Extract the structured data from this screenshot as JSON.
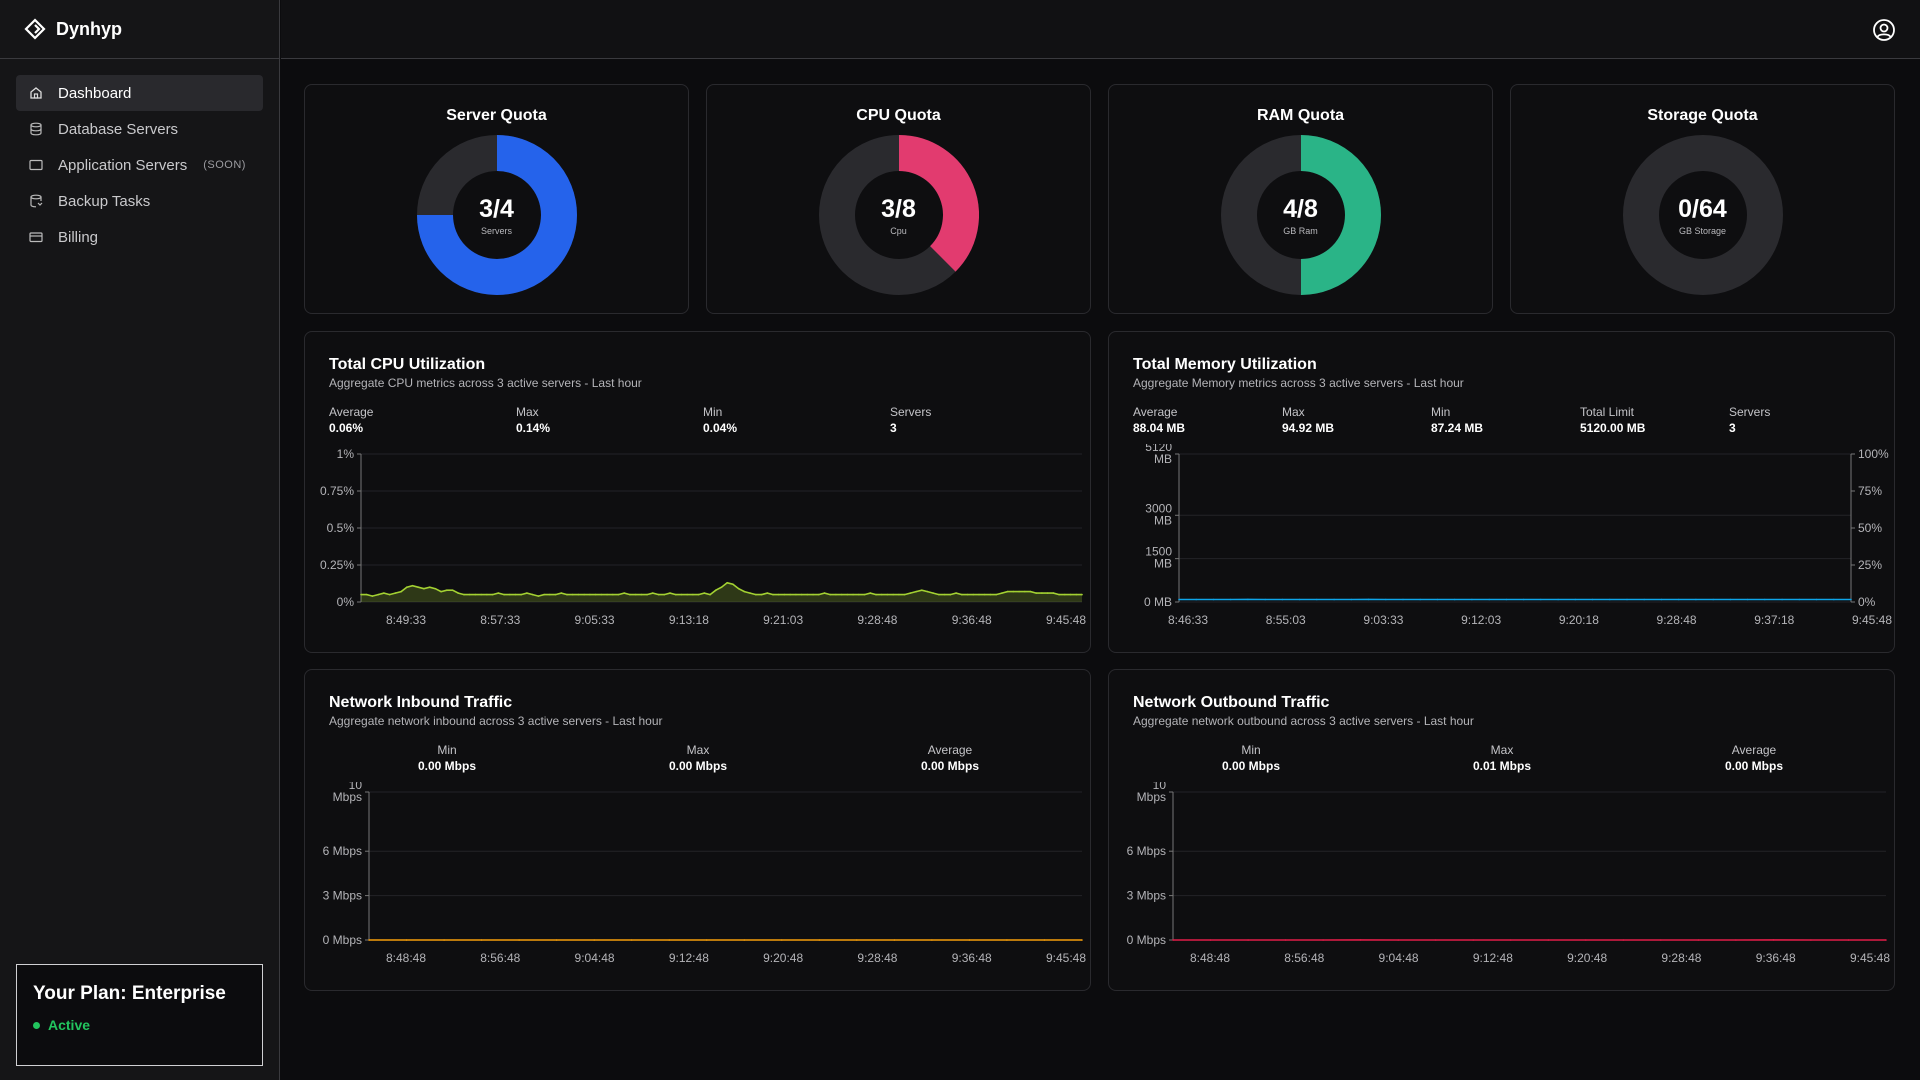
{
  "brand": {
    "name": "Dynhyp"
  },
  "sidebar": {
    "items": [
      {
        "label": "Dashboard"
      },
      {
        "label": "Database Servers"
      },
      {
        "label": "Application Servers",
        "badge": "(SOON)"
      },
      {
        "label": "Backup Tasks"
      },
      {
        "label": "Billing"
      }
    ]
  },
  "plan": {
    "title": "Your Plan: Enterprise",
    "status": "Active"
  },
  "quotas": [
    {
      "title": "Server Quota",
      "value": "3/4",
      "unit": "Servers",
      "used": 3,
      "total": 4,
      "color": "#2563eb"
    },
    {
      "title": "CPU Quota",
      "value": "3/8",
      "unit": "Cpu",
      "used": 3,
      "total": 8,
      "color": "#e23b6f"
    },
    {
      "title": "RAM Quota",
      "value": "4/8",
      "unit": "GB Ram",
      "used": 4,
      "total": 8,
      "color": "#2ab487"
    },
    {
      "title": "Storage Quota",
      "value": "0/64",
      "unit": "GB Storage",
      "used": 0,
      "total": 64,
      "color": "#4ade80"
    }
  ],
  "cpu_panel": {
    "title": "Total CPU Utilization",
    "subtitle": "Aggregate CPU metrics across 3 active servers - Last hour",
    "stats": [
      {
        "label": "Average",
        "value": "0.06%"
      },
      {
        "label": "Max",
        "value": "0.14%"
      },
      {
        "label": "Min",
        "value": "0.04%"
      },
      {
        "label": "Servers",
        "value": "3"
      }
    ]
  },
  "mem_panel": {
    "title": "Total Memory Utilization",
    "subtitle": "Aggregate Memory metrics across 3 active servers - Last hour",
    "stats": [
      {
        "label": "Average",
        "value": "88.04 MB"
      },
      {
        "label": "Max",
        "value": "94.92 MB"
      },
      {
        "label": "Min",
        "value": "87.24 MB"
      },
      {
        "label": "Total Limit",
        "value": "5120.00 MB"
      },
      {
        "label": "Servers",
        "value": "3"
      }
    ]
  },
  "in_panel": {
    "title": "Network Inbound Traffic",
    "subtitle": "Aggregate network inbound across 3 active servers - Last hour",
    "stats": [
      {
        "label": "Min",
        "value": "0.00 Mbps"
      },
      {
        "label": "Max",
        "value": "0.00 Mbps"
      },
      {
        "label": "Average",
        "value": "0.00 Mbps"
      }
    ]
  },
  "out_panel": {
    "title": "Network Outbound Traffic",
    "subtitle": "Aggregate network outbound across 3 active servers - Last hour",
    "stats": [
      {
        "label": "Min",
        "value": "0.00 Mbps"
      },
      {
        "label": "Max",
        "value": "0.01 Mbps"
      },
      {
        "label": "Average",
        "value": "0.00 Mbps"
      }
    ]
  },
  "chart_data": [
    {
      "type": "area",
      "title": "Total CPU Utilization",
      "ylim": [
        0,
        1
      ],
      "y_ticks": [
        "0%",
        "0.25%",
        "0.5%",
        "0.75%",
        "1%"
      ],
      "x_ticks": [
        "8:49:33",
        "8:57:33",
        "9:05:33",
        "9:13:18",
        "9:21:03",
        "9:28:48",
        "9:36:48",
        "9:45:48"
      ],
      "color": "#a3d132",
      "series": [
        {
          "values": [
            0.05,
            0.05,
            0.04,
            0.05,
            0.06,
            0.05,
            0.06,
            0.07,
            0.1,
            0.11,
            0.1,
            0.09,
            0.1,
            0.09,
            0.07,
            0.08,
            0.08,
            0.06,
            0.05,
            0.05,
            0.05,
            0.05,
            0.05,
            0.05,
            0.06,
            0.05,
            0.05,
            0.05,
            0.05,
            0.06,
            0.05,
            0.04,
            0.05,
            0.05,
            0.05,
            0.06,
            0.05,
            0.05,
            0.05,
            0.05,
            0.05,
            0.05,
            0.05,
            0.05,
            0.05,
            0.05,
            0.06,
            0.05,
            0.05,
            0.05,
            0.05,
            0.06,
            0.05,
            0.05,
            0.06,
            0.05,
            0.05,
            0.05,
            0.05,
            0.05,
            0.06,
            0.05,
            0.08,
            0.1,
            0.13,
            0.12,
            0.09,
            0.07,
            0.06,
            0.05,
            0.05,
            0.06,
            0.05,
            0.05,
            0.05,
            0.05,
            0.05,
            0.05,
            0.05,
            0.05,
            0.05,
            0.06,
            0.05,
            0.05,
            0.05,
            0.05,
            0.05,
            0.05,
            0.05,
            0.06,
            0.05,
            0.05,
            0.05,
            0.05,
            0.05,
            0.05,
            0.06,
            0.07,
            0.08,
            0.07,
            0.06,
            0.05,
            0.05,
            0.05,
            0.06,
            0.05,
            0.05,
            0.05,
            0.05,
            0.05,
            0.05,
            0.05,
            0.06,
            0.07,
            0.07,
            0.07,
            0.07,
            0.07,
            0.06,
            0.06,
            0.06,
            0.06,
            0.05,
            0.05,
            0.05,
            0.05,
            0.05
          ]
        }
      ]
    },
    {
      "type": "line",
      "title": "Total Memory Utilization",
      "ylim": [
        0,
        5120
      ],
      "y_ticks_left": [
        {
          "v": 0,
          "t": "0 MB"
        },
        {
          "v": 1500,
          "t": "1500 MB"
        },
        {
          "v": 3000,
          "t": "3000 MB"
        },
        {
          "v": 5120,
          "t": "5120 MB"
        }
      ],
      "y_ticks_right": [
        "0%",
        "25%",
        "50%",
        "75%",
        "100%"
      ],
      "x_ticks": [
        "8:46:33",
        "8:55:03",
        "9:03:33",
        "9:12:03",
        "9:20:18",
        "9:28:48",
        "9:37:18",
        "9:45:48"
      ],
      "color": "#0ea5e9",
      "series": [
        {
          "values": [
            88,
            88,
            87.5,
            88,
            88.5,
            88,
            88,
            87.5,
            88,
            88,
            88,
            88.5,
            88,
            88,
            88,
            88,
            88,
            88,
            88,
            88,
            88,
            88,
            88,
            88,
            88,
            88,
            88,
            88,
            88,
            88,
            88,
            88,
            88,
            88,
            88,
            88,
            88,
            88,
            88,
            88
          ]
        }
      ]
    },
    {
      "type": "line",
      "title": "Network Inbound Traffic",
      "ylim": [
        0,
        10
      ],
      "y_ticks": [
        {
          "v": 0,
          "t": "0 Mbps"
        },
        {
          "v": 3,
          "t": "3 Mbps"
        },
        {
          "v": 6,
          "t": "6 Mbps"
        },
        {
          "v": 10,
          "t": "10 Mbps"
        }
      ],
      "x_ticks": [
        "8:48:48",
        "8:56:48",
        "9:04:48",
        "9:12:48",
        "9:20:48",
        "9:28:48",
        "9:36:48",
        "9:45:48"
      ],
      "color": "#f59e0b",
      "series": [
        {
          "values": [
            0,
            0,
            0,
            0,
            0,
            0,
            0,
            0,
            0,
            0,
            0,
            0,
            0,
            0,
            0,
            0,
            0,
            0,
            0,
            0
          ]
        }
      ]
    },
    {
      "type": "line",
      "title": "Network Outbound Traffic",
      "ylim": [
        0,
        10
      ],
      "y_ticks": [
        {
          "v": 0,
          "t": "0 Mbps"
        },
        {
          "v": 3,
          "t": "3 Mbps"
        },
        {
          "v": 6,
          "t": "6 Mbps"
        },
        {
          "v": 10,
          "t": "10 Mbps"
        }
      ],
      "x_ticks": [
        "8:48:48",
        "8:56:48",
        "9:04:48",
        "9:12:48",
        "9:20:48",
        "9:28:48",
        "9:36:48",
        "9:45:48"
      ],
      "color": "#e11d48",
      "series": [
        {
          "values": [
            0,
            0,
            0,
            0,
            0,
            0.01,
            0,
            0,
            0,
            0,
            0,
            0,
            0,
            0,
            0,
            0,
            0.01,
            0,
            0,
            0
          ]
        }
      ]
    }
  ]
}
